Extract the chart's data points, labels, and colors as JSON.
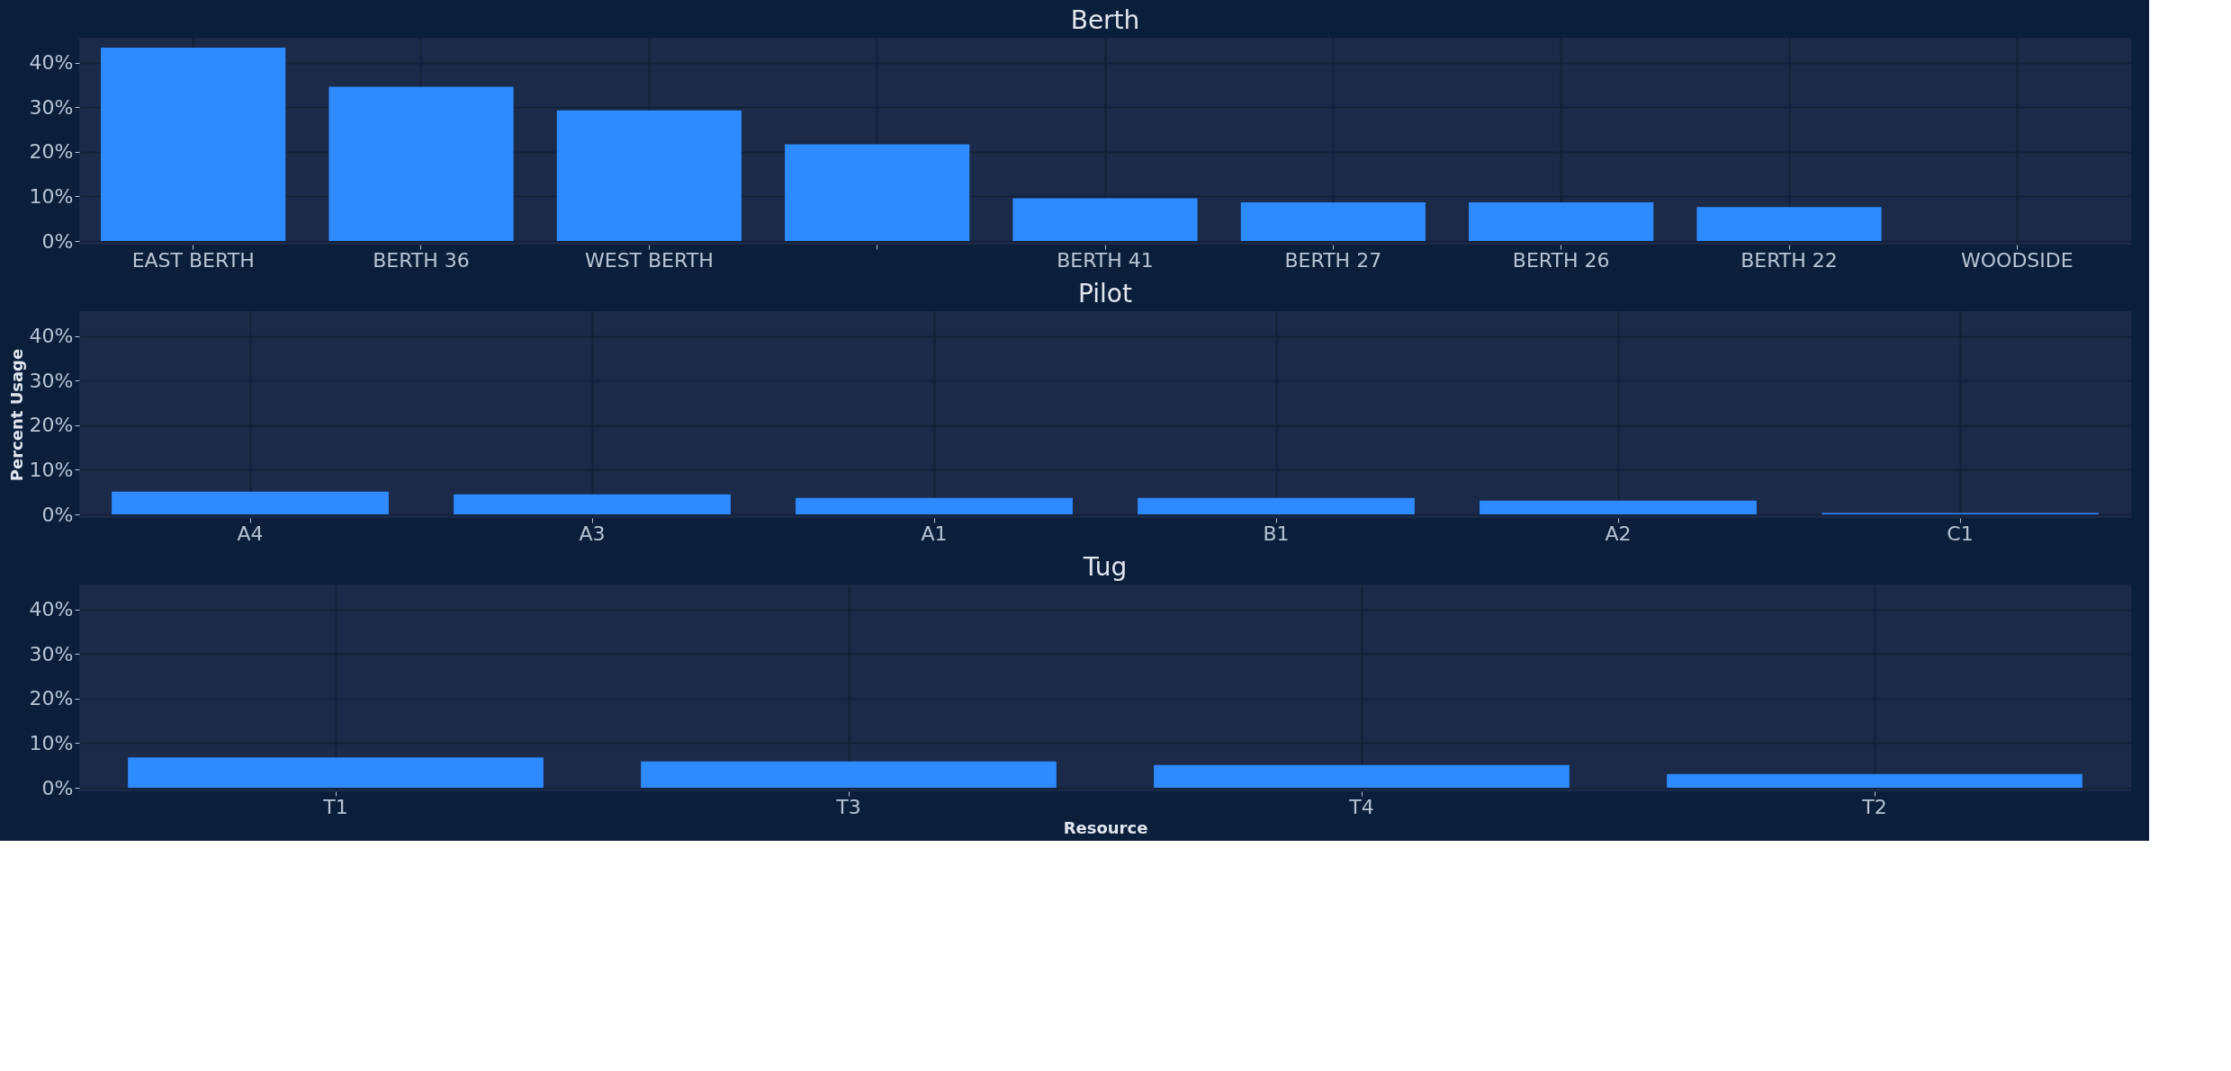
{
  "chart_data": [
    {
      "type": "bar",
      "title": "Berth",
      "categories": [
        "EAST BERTH",
        "BERTH 36",
        "WEST BERTH",
        null,
        "BERTH 41",
        "BERTH 27",
        "BERTH 26",
        "BERTH 22",
        "WOODSIDE"
      ],
      "values": [
        43.4,
        34.6,
        29.3,
        21.7,
        9.6,
        8.7,
        8.7,
        7.6,
        0
      ],
      "color": "#2e8bff",
      "ylim": [
        -0.8,
        45.6
      ],
      "yticks": [
        {
          "value": 0,
          "label": "0%"
        },
        {
          "value": 10,
          "label": "10%"
        },
        {
          "value": 20,
          "label": "20%"
        },
        {
          "value": 30,
          "label": "30%"
        },
        {
          "value": 40,
          "label": "40%"
        }
      ],
      "grid": true
    },
    {
      "type": "bar",
      "title": "Pilot",
      "ylabel": "Percent Usage",
      "categories": [
        "A4",
        "A3",
        "A1",
        "B1",
        "A2",
        "C1"
      ],
      "values": [
        5.1,
        4.5,
        3.7,
        3.7,
        3.1,
        0.3
      ],
      "color": "#2e8bff",
      "ylim": [
        -0.8,
        45.6
      ],
      "yticks": [
        {
          "value": 0,
          "label": "0%"
        },
        {
          "value": 10,
          "label": "10%"
        },
        {
          "value": 20,
          "label": "20%"
        },
        {
          "value": 30,
          "label": "30%"
        },
        {
          "value": 40,
          "label": "40%"
        }
      ],
      "grid": true
    },
    {
      "type": "bar",
      "title": "Tug",
      "xlabel": "Resource",
      "categories": [
        "T1",
        "T3",
        "T4",
        "T2"
      ],
      "values": [
        6.8,
        5.9,
        5.1,
        3.1
      ],
      "color": "#2e8bff",
      "ylim": [
        -0.8,
        45.6
      ],
      "yticks": [
        {
          "value": 0,
          "label": "0%"
        },
        {
          "value": 10,
          "label": "10%"
        },
        {
          "value": 20,
          "label": "20%"
        },
        {
          "value": 30,
          "label": "30%"
        },
        {
          "value": 40,
          "label": "40%"
        }
      ],
      "grid": true
    }
  ]
}
